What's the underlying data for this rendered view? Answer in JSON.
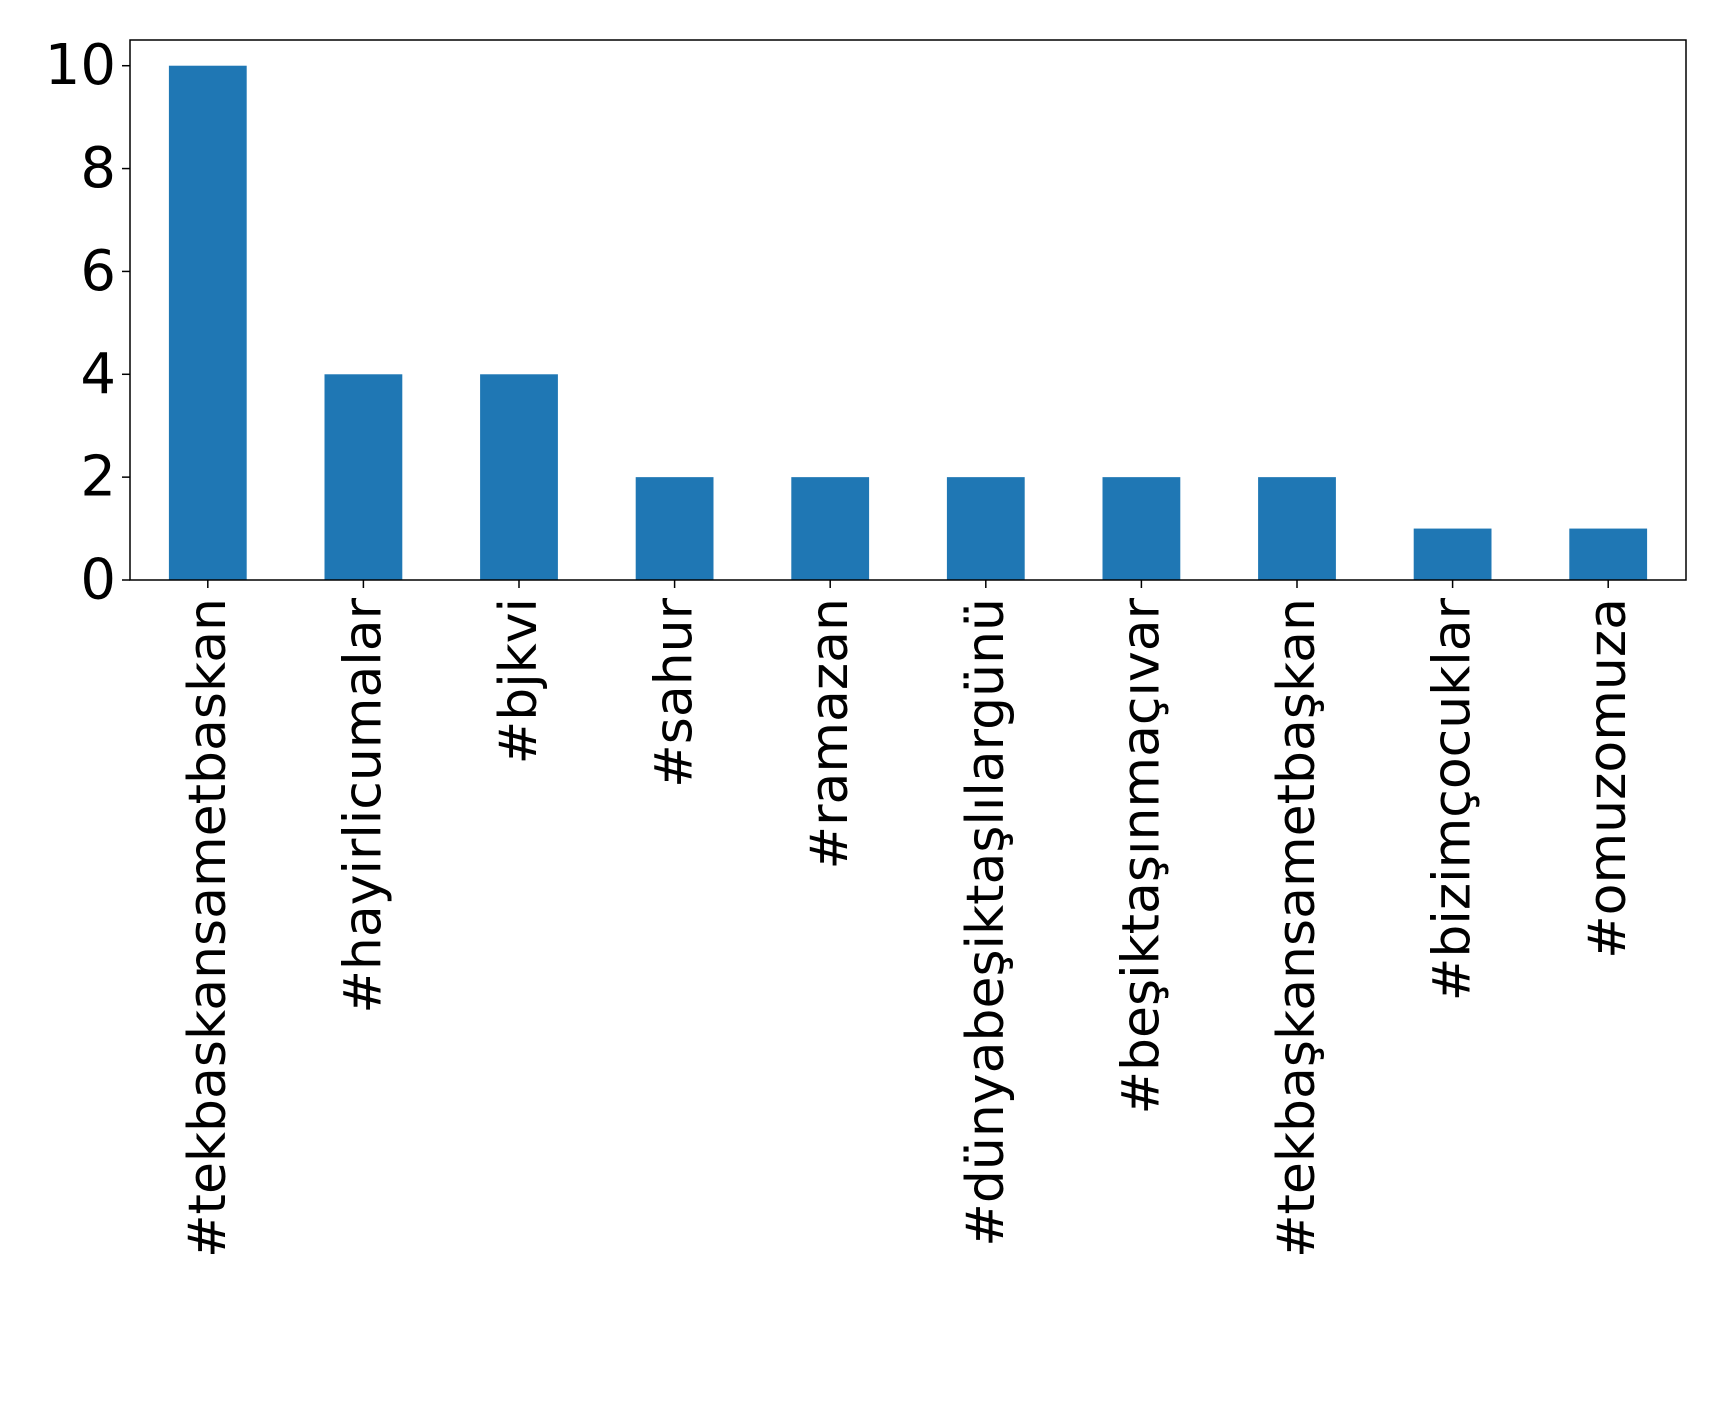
{
  "chart_data": {
    "type": "bar",
    "title": "",
    "xlabel": "",
    "ylabel": "",
    "categories": [
      "#tekbaskansametbaskan",
      "#hayirlicumalar",
      "#bjkvi",
      "#sahur",
      "#ramazan",
      "#dünyabeşiktaşlılargünü",
      "#beşiktaşınmaçıvar",
      "#tekbaşkansametbaşkan",
      "#bizimçocuklar",
      "#omuzomuza"
    ],
    "values": [
      10,
      4,
      4,
      2,
      2,
      2,
      2,
      2,
      1,
      1
    ],
    "ylim": [
      0,
      10.5
    ],
    "yticks": [
      "0",
      "2",
      "4",
      "6",
      "8",
      "10"
    ],
    "grid": false,
    "bar_color": "#1f77b4"
  }
}
